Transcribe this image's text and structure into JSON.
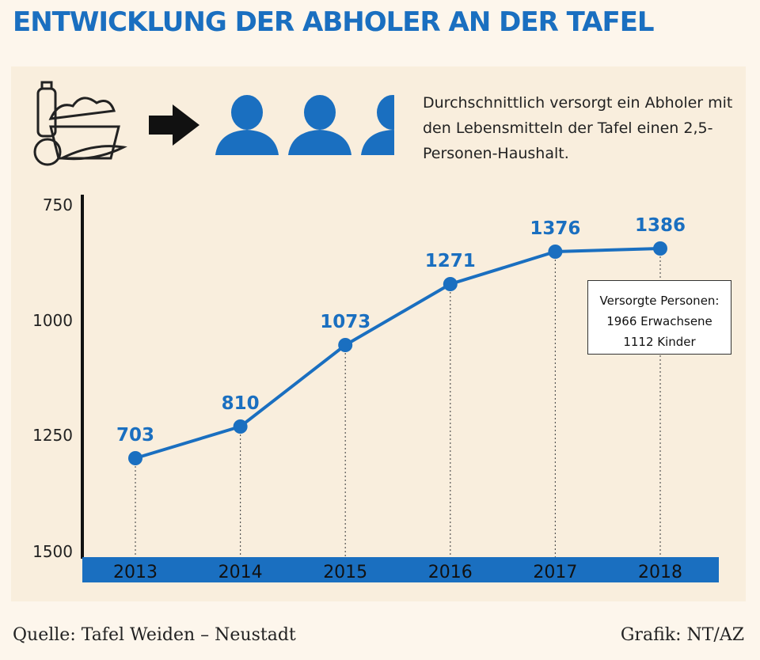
{
  "title": "ENTWICKLUNG DER ABHOLER AN DER TAFEL",
  "note": "Durchschnittlich versorgt ein Abholer mit den Lebensmitteln der Tafel einen 2,5-Personen-Haushalt.",
  "icons": [
    "groceries-icon",
    "arrow-right-icon",
    "person-icon",
    "person-icon",
    "person-half-icon"
  ],
  "callout": {
    "line1": "Versorgte Personen:",
    "line2": "1966 Erwachsene",
    "line3": "1112 Kinder"
  },
  "footer": {
    "source": "Quelle: Tafel Weiden – Neustadt",
    "credit": "Grafik: NT/AZ"
  },
  "colors": {
    "accent": "#1a6fc0",
    "background": "#fdf6ec",
    "panel": "#f9eedd"
  },
  "chart_data": {
    "type": "line",
    "categories": [
      "2013",
      "2014",
      "2015",
      "2016",
      "2017",
      "2018"
    ],
    "values": [
      703,
      810,
      1073,
      1271,
      1376,
      1386
    ],
    "data_labels": [
      "703",
      "810",
      "1073",
      "1271",
      "1376",
      "1386"
    ],
    "y_ticks": [
      "750",
      "1000",
      "1250",
      "1500"
    ],
    "ylim": [
      750,
      1500
    ],
    "grid": false,
    "axis_note": "values plotted on a nonlinear visual scale; drop lines from each point to the x axis"
  }
}
